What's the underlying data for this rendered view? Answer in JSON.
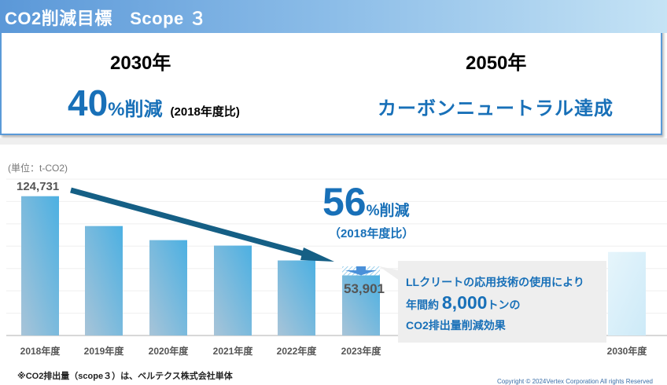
{
  "header": {
    "title": "CO2削減目標　Scope ３"
  },
  "targets": {
    "y2030": {
      "year": "2030年",
      "value": "40",
      "unit": "%削減",
      "note": "(2018年度比)"
    },
    "y2050": {
      "year": "2050年",
      "goal": "カーボンニュートラル達成"
    }
  },
  "chart_data": {
    "type": "bar",
    "unit_label": "(単位：t-CO2)",
    "categories": [
      "2018年度",
      "2019年度",
      "2020年度",
      "2021年度",
      "2022年度",
      "2023年度",
      "2030年度"
    ],
    "values": [
      124731,
      98000,
      85400,
      80500,
      67200,
      53901,
      74800
    ],
    "data_labels": {
      "first": "124,731",
      "last": "53,901"
    },
    "reduction_effect": 8000,
    "ylim": [
      0,
      140000
    ],
    "grid_step": 20000,
    "reduction": {
      "value": "56",
      "unit": "%削減",
      "note": "（2018年度比）"
    },
    "callout": {
      "line1": "LLクリートの応用技術の使用により",
      "line2_pre": "年間約",
      "line2_num": "8,000",
      "line2_post": "トンの",
      "line3": "CO2排出量削減効果"
    }
  },
  "footer": {
    "note": "※CO2排出量（scope３）は、ベルテクス株式会社単体",
    "copyright": "Copyright © 2024Vertex Corporation All rights Reserved"
  },
  "colors": {
    "accent": "#1870b8",
    "arrow": "#155f85",
    "bar_top": "#4cb0e2",
    "bar_bottom": "#a8c4d8",
    "target_bar": "#d6eef9"
  }
}
